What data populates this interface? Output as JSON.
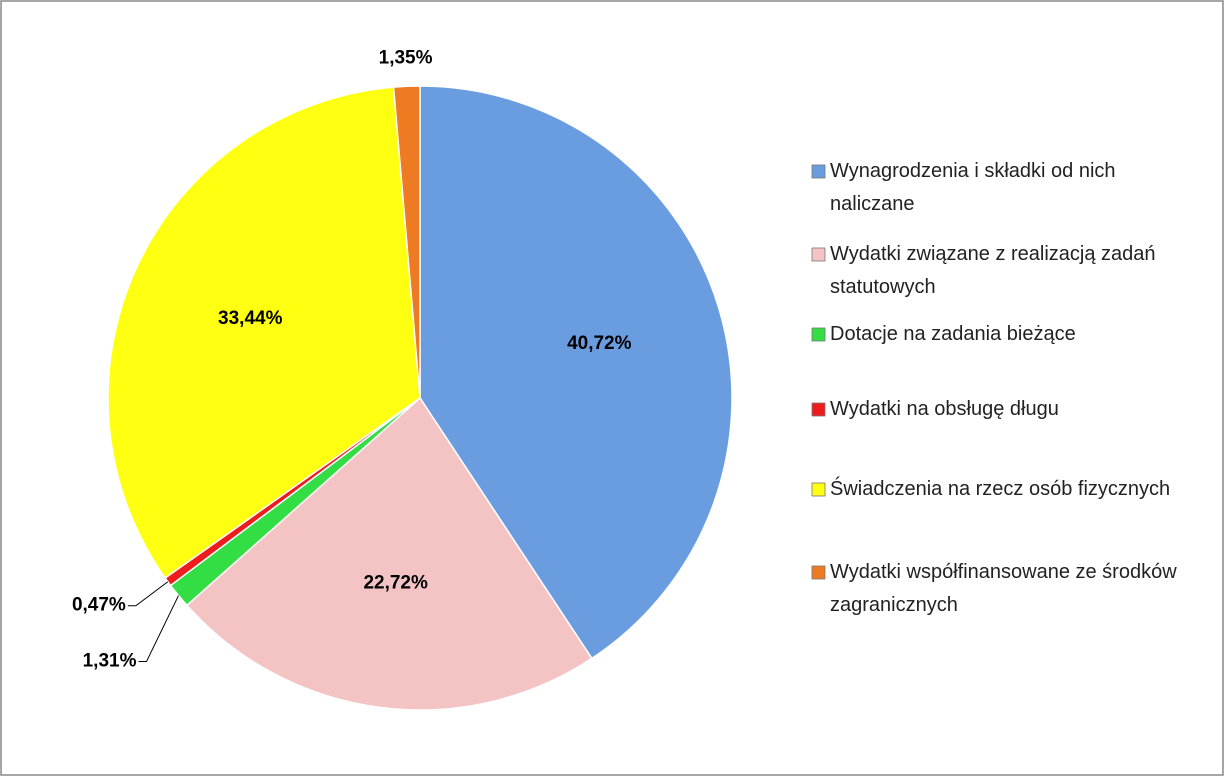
{
  "chart_data": {
    "type": "pie",
    "categories": [
      "Wynagrodzenia i składki od nich naliczane",
      "Wydatki związane z realizacją zadań statutowych",
      "Dotacje na zadania bieżące",
      "Wydatki na obsługę długu",
      "Świadczenia na rzecz osób fizycznych",
      "Wydatki współfinansowane ze środków zagranicznych"
    ],
    "values": [
      40.72,
      22.72,
      1.31,
      0.47,
      33.44,
      1.35
    ],
    "value_labels": [
      "40,72%",
      "22,72%",
      "1,31%",
      "0,47%",
      "33,44%",
      "1,35%"
    ],
    "colors": [
      "#6a9de0",
      "#f4c4c4",
      "#33dd44",
      "#ee1c1c",
      "#ffff11",
      "#ee7a22"
    ],
    "legend": "right"
  }
}
